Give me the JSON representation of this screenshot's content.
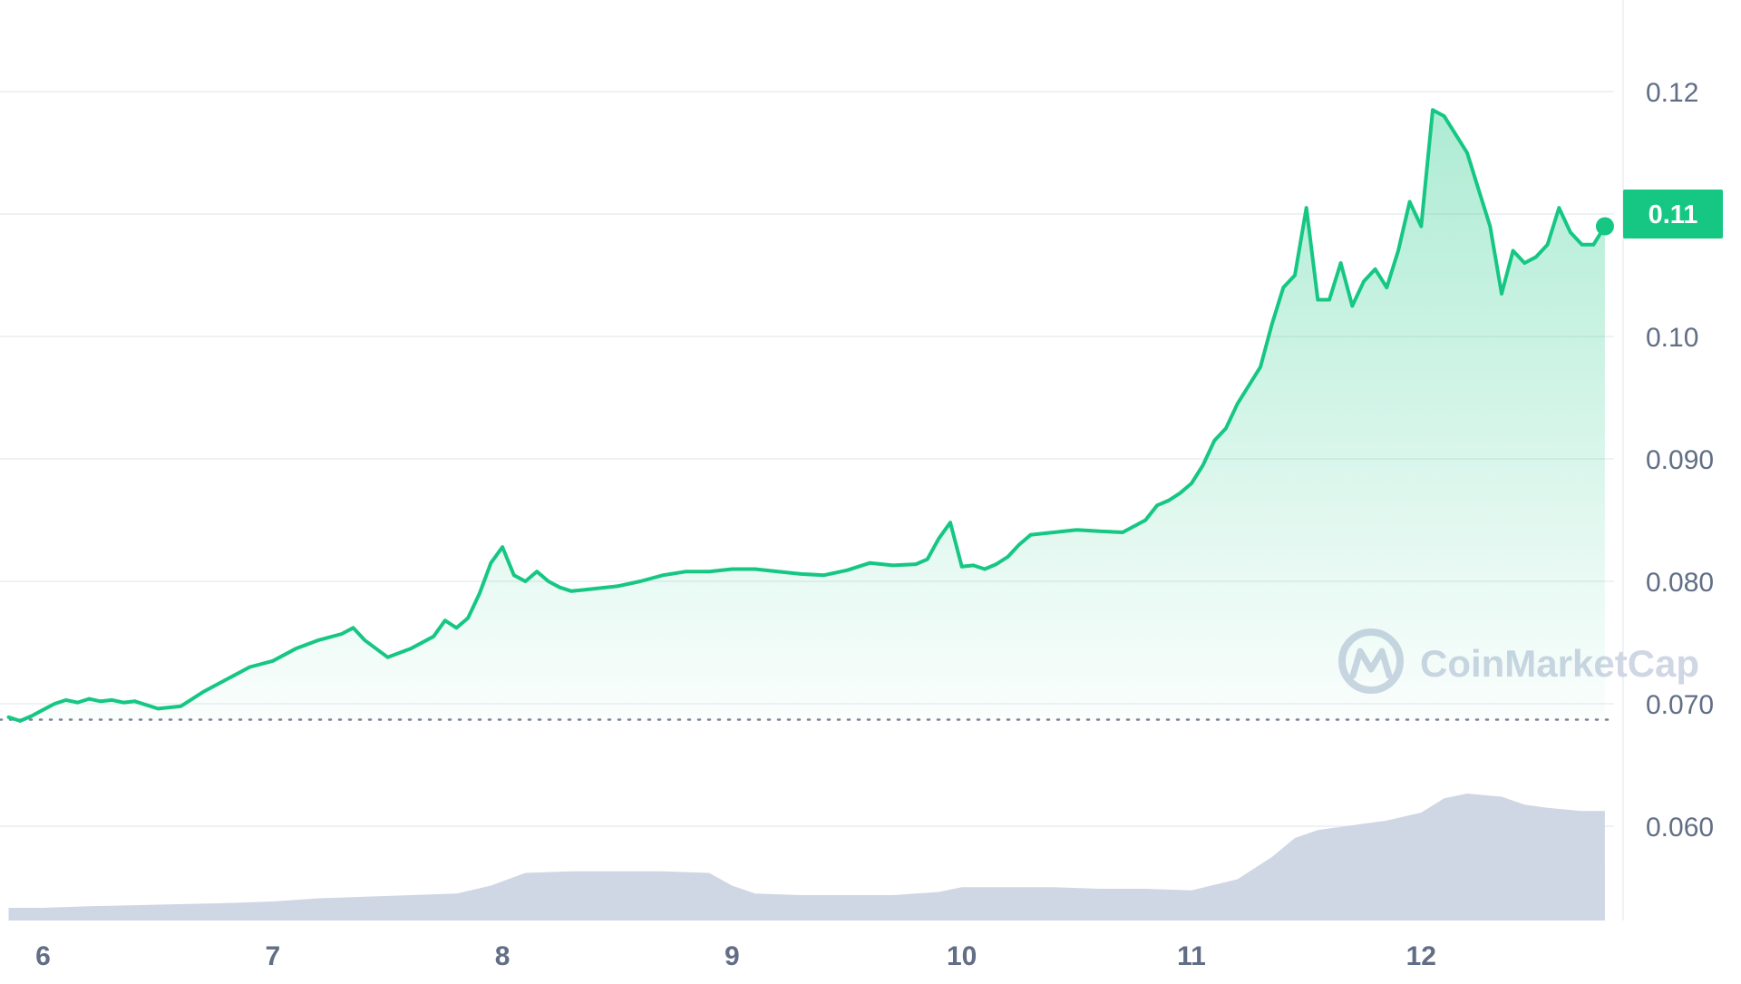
{
  "chart_data": {
    "type": "line",
    "title": "",
    "xlabel": "",
    "ylabel": "",
    "watermark": "CoinMarketCap",
    "x_ticks": [
      "6",
      "7",
      "8",
      "9",
      "10",
      "11",
      "12"
    ],
    "y_ticks": [
      "0.060",
      "0.070",
      "0.080",
      "0.090",
      "0.10",
      "0.12"
    ],
    "current_price_label": "0.11",
    "ylim": [
      0.0535,
      0.1265
    ],
    "xlim": [
      5.85,
      12.85
    ],
    "open_price": 0.0687,
    "grid": true,
    "colors": {
      "up_line": "#16c784",
      "down_line": "#ea3943",
      "area_top": "#16c784",
      "volume": "#cfd6e4",
      "grid": "#eff2f5",
      "axis_text": "#616e85",
      "price_tag_bg": "#16c784",
      "price_tag_text": "#ffffff",
      "watermark": "#cfd6e4"
    },
    "series": [
      {
        "values_x": [
          5.85,
          5.9,
          5.95,
          6.0,
          6.05,
          6.1,
          6.15,
          6.2,
          6.25,
          6.3,
          6.35,
          6.4,
          6.5,
          6.6,
          6.7,
          6.8,
          6.9,
          7.0,
          7.1,
          7.2,
          7.3,
          7.35,
          7.4,
          7.5,
          7.6,
          7.7,
          7.75,
          7.8,
          7.85,
          7.9,
          7.95,
          8.0,
          8.05,
          8.1,
          8.15,
          8.2,
          8.25,
          8.3,
          8.35,
          8.4,
          8.5,
          8.6,
          8.7,
          8.8,
          8.9,
          9.0,
          9.1,
          9.2,
          9.3,
          9.4,
          9.5,
          9.6,
          9.7,
          9.8,
          9.85,
          9.9,
          9.95,
          10.0,
          10.05,
          10.1,
          10.15,
          10.2,
          10.25,
          10.3,
          10.4,
          10.5,
          10.6,
          10.7,
          10.8,
          10.85,
          10.9,
          10.95,
          11.0,
          11.05,
          11.1,
          11.15,
          11.2,
          11.25,
          11.3,
          11.35,
          11.4,
          11.45,
          11.5,
          11.55,
          11.6,
          11.65,
          11.7,
          11.75,
          11.8,
          11.85,
          11.9,
          11.95,
          12.0,
          12.05,
          12.1,
          12.15,
          12.2,
          12.25,
          12.3,
          12.35,
          12.4,
          12.45,
          12.5,
          12.55,
          12.6,
          12.65,
          12.7,
          12.75,
          12.8
        ],
        "values_y": [
          0.0689,
          0.0686,
          0.069,
          0.0695,
          0.07,
          0.0703,
          0.0701,
          0.0704,
          0.0702,
          0.0703,
          0.0701,
          0.0702,
          0.0696,
          0.0698,
          0.071,
          0.072,
          0.073,
          0.0735,
          0.0745,
          0.0752,
          0.0757,
          0.0762,
          0.0752,
          0.0738,
          0.0745,
          0.0755,
          0.0768,
          0.0762,
          0.077,
          0.079,
          0.0815,
          0.0828,
          0.0805,
          0.08,
          0.0808,
          0.08,
          0.0795,
          0.0792,
          0.0793,
          0.0794,
          0.0796,
          0.08,
          0.0805,
          0.0808,
          0.0808,
          0.081,
          0.081,
          0.0808,
          0.0806,
          0.0805,
          0.0809,
          0.0815,
          0.0813,
          0.0814,
          0.0818,
          0.0835,
          0.0848,
          0.0812,
          0.0813,
          0.081,
          0.0814,
          0.082,
          0.083,
          0.0838,
          0.084,
          0.0842,
          0.0841,
          0.084,
          0.085,
          0.0862,
          0.0866,
          0.0872,
          0.088,
          0.0895,
          0.0915,
          0.0925,
          0.0945,
          0.096,
          0.0975,
          0.101,
          0.104,
          0.105,
          0.1105,
          0.103,
          0.103,
          0.106,
          0.1025,
          0.1045,
          0.1055,
          0.104,
          0.107,
          0.111,
          0.109,
          0.1185,
          0.118,
          0.1165,
          0.115,
          0.112,
          0.109,
          0.1035,
          0.107,
          0.106,
          0.1065,
          0.1075,
          0.1105,
          0.1085,
          0.1075,
          0.1075,
          0.109
        ]
      }
    ],
    "volume": {
      "x": [
        5.85,
        6.0,
        6.2,
        6.5,
        6.8,
        7.0,
        7.2,
        7.4,
        7.6,
        7.8,
        7.95,
        8.1,
        8.3,
        8.5,
        8.7,
        8.9,
        9.0,
        9.1,
        9.3,
        9.5,
        9.7,
        9.9,
        10.0,
        10.2,
        10.4,
        10.6,
        10.8,
        11.0,
        11.2,
        11.35,
        11.45,
        11.55,
        11.7,
        11.85,
        12.0,
        12.1,
        12.2,
        12.35,
        12.45,
        12.55,
        12.7,
        12.8
      ],
      "relative": [
        0.08,
        0.08,
        0.09,
        0.1,
        0.11,
        0.12,
        0.14,
        0.15,
        0.16,
        0.17,
        0.22,
        0.3,
        0.31,
        0.31,
        0.31,
        0.3,
        0.22,
        0.17,
        0.16,
        0.16,
        0.16,
        0.18,
        0.21,
        0.21,
        0.21,
        0.2,
        0.2,
        0.19,
        0.26,
        0.4,
        0.52,
        0.57,
        0.6,
        0.63,
        0.68,
        0.77,
        0.8,
        0.78,
        0.73,
        0.71,
        0.69,
        0.69
      ]
    }
  }
}
